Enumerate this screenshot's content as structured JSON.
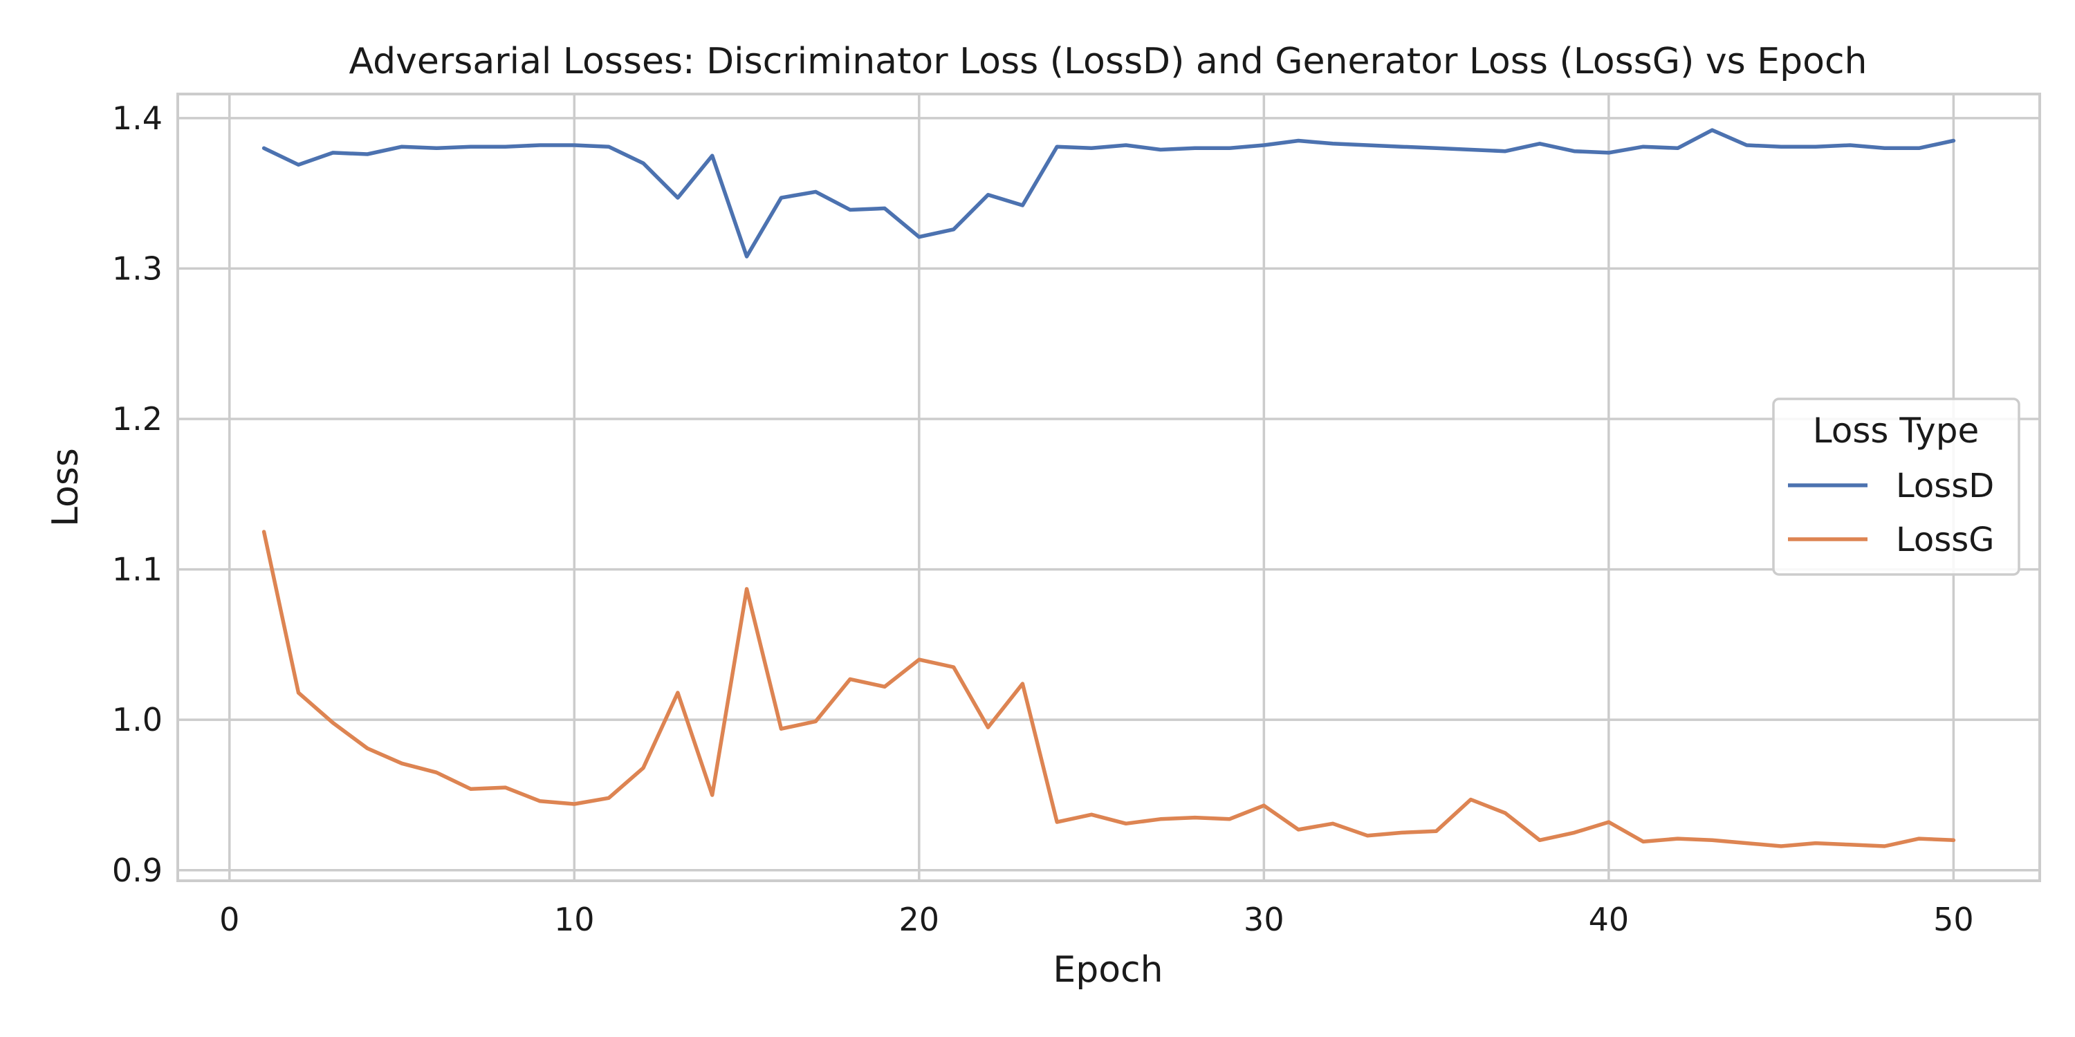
{
  "chart_data": {
    "type": "line",
    "title": "Adversarial Losses: Discriminator Loss (LossD) and Generator Loss (LossG) vs Epoch",
    "xlabel": "Epoch",
    "ylabel": "Loss",
    "xlim": [
      -1.5,
      52.5
    ],
    "ylim": [
      0.893,
      1.416
    ],
    "xticks": [
      0,
      10,
      20,
      30,
      40,
      50
    ],
    "xtick_labels": [
      "0",
      "10",
      "20",
      "30",
      "40",
      "50"
    ],
    "yticks": [
      0.9,
      1.0,
      1.1,
      1.2,
      1.3,
      1.4
    ],
    "ytick_labels": [
      "0.9",
      "1.0",
      "1.1",
      "1.2",
      "1.3",
      "1.4"
    ],
    "grid": true,
    "legend": {
      "title": "Loss Type",
      "placement": "center-right"
    },
    "x": [
      1,
      2,
      3,
      4,
      5,
      6,
      7,
      8,
      9,
      10,
      11,
      12,
      13,
      14,
      15,
      16,
      17,
      18,
      19,
      20,
      21,
      22,
      23,
      24,
      25,
      26,
      27,
      28,
      29,
      30,
      31,
      32,
      33,
      34,
      35,
      36,
      37,
      38,
      39,
      40,
      41,
      42,
      43,
      44,
      45,
      46,
      47,
      48,
      49,
      50
    ],
    "series": [
      {
        "name": "LossD",
        "color": "#4c72b0",
        "values": [
          1.38,
          1.369,
          1.377,
          1.376,
          1.381,
          1.38,
          1.381,
          1.381,
          1.382,
          1.382,
          1.381,
          1.37,
          1.347,
          1.375,
          1.308,
          1.347,
          1.351,
          1.339,
          1.34,
          1.321,
          1.326,
          1.349,
          1.342,
          1.381,
          1.38,
          1.382,
          1.379,
          1.38,
          1.38,
          1.382,
          1.385,
          1.383,
          1.382,
          1.381,
          1.38,
          1.379,
          1.378,
          1.383,
          1.378,
          1.377,
          1.381,
          1.38,
          1.392,
          1.382,
          1.381,
          1.381,
          1.382,
          1.38,
          1.38,
          1.385
        ]
      },
      {
        "name": "LossG",
        "color": "#dd8452",
        "values": [
          1.125,
          1.018,
          0.998,
          0.981,
          0.971,
          0.965,
          0.954,
          0.955,
          0.946,
          0.944,
          0.948,
          0.968,
          1.018,
          0.95,
          1.087,
          0.994,
          0.999,
          1.027,
          1.022,
          1.04,
          1.035,
          0.995,
          1.024,
          0.932,
          0.937,
          0.931,
          0.934,
          0.935,
          0.934,
          0.943,
          0.927,
          0.931,
          0.923,
          0.925,
          0.926,
          0.947,
          0.938,
          0.92,
          0.925,
          0.932,
          0.919,
          0.921,
          0.92,
          0.918,
          0.916,
          0.918,
          0.917,
          0.916,
          0.921,
          0.92
        ]
      }
    ]
  }
}
